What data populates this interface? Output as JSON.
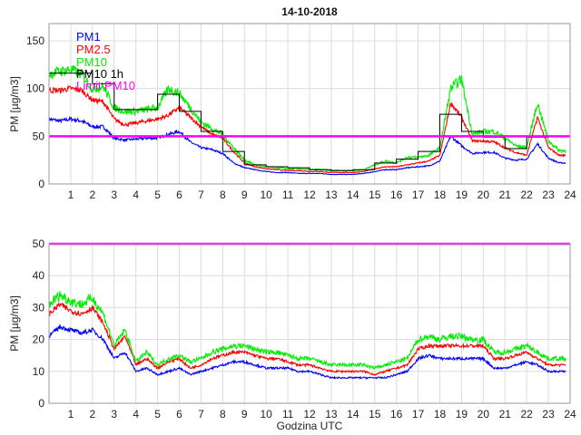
{
  "chart_data": [
    {
      "type": "line",
      "title": "14-10-2018",
      "xlabel": "",
      "ylabel": "PM [µg/m3]",
      "xlim": [
        0,
        24
      ],
      "ylim": [
        0,
        168
      ],
      "xticks": [
        1,
        2,
        3,
        4,
        5,
        6,
        7,
        8,
        9,
        10,
        11,
        12,
        13,
        14,
        15,
        16,
        17,
        18,
        19,
        20,
        21,
        22,
        23,
        24
      ],
      "yticks": [
        0,
        50,
        100,
        150
      ],
      "grid": true,
      "legend_position": "top-left",
      "x": [
        0,
        0.5,
        1,
        1.5,
        2,
        2.5,
        3,
        3.5,
        4,
        4.5,
        5,
        5.5,
        6,
        6.5,
        7,
        7.5,
        8,
        8.5,
        9,
        9.5,
        10,
        10.5,
        11,
        11.5,
        12,
        12.5,
        13,
        13.5,
        14,
        14.5,
        15,
        15.5,
        16,
        16.5,
        17,
        17.5,
        18,
        18.5,
        19,
        19.5,
        20,
        20.5,
        21,
        21.5,
        22,
        22.5,
        23,
        23.5,
        23.8
      ],
      "series": [
        {
          "name": "PM1",
          "color": "#0000ff",
          "values": [
            68,
            66,
            68,
            66,
            60,
            60,
            48,
            46,
            47,
            48,
            48,
            52,
            55,
            44,
            38,
            36,
            32,
            22,
            17,
            15,
            13,
            12,
            12,
            11,
            11,
            11,
            10,
            10,
            10,
            11,
            13,
            15,
            15,
            17,
            18,
            19,
            24,
            50,
            40,
            32,
            33,
            33,
            27,
            25,
            26,
            42,
            27,
            22,
            22
          ]
        },
        {
          "name": "PM2.5",
          "color": "#ff0000",
          "values": [
            98,
            98,
            100,
            98,
            88,
            86,
            68,
            62,
            64,
            66,
            68,
            72,
            80,
            70,
            60,
            52,
            48,
            34,
            22,
            18,
            16,
            15,
            14,
            14,
            13,
            13,
            12,
            12,
            12,
            13,
            16,
            18,
            18,
            20,
            22,
            24,
            30,
            85,
            70,
            45,
            45,
            44,
            38,
            33,
            30,
            70,
            38,
            30,
            30
          ]
        },
        {
          "name": "PM10",
          "color": "#00ee00",
          "values": [
            115,
            118,
            120,
            115,
            100,
            102,
            80,
            76,
            76,
            78,
            80,
            100,
            95,
            80,
            65,
            58,
            52,
            38,
            25,
            20,
            18,
            17,
            16,
            16,
            15,
            15,
            14,
            14,
            14,
            15,
            20,
            24,
            22,
            28,
            28,
            30,
            38,
            100,
            110,
            52,
            55,
            55,
            48,
            40,
            38,
            85,
            45,
            35,
            35
          ]
        }
      ],
      "pm10_1h": {
        "name": "PM10 1h",
        "color": "#000000",
        "hours": [
          0,
          1,
          2,
          3,
          4,
          5,
          6,
          7,
          8,
          9,
          10,
          11,
          12,
          13,
          14,
          15,
          16,
          17,
          18,
          19,
          20,
          21,
          22
        ],
        "values": [
          116,
          116,
          105,
          78,
          78,
          94,
          76,
          55,
          34,
          20,
          18,
          17,
          15,
          14,
          15,
          22,
          26,
          34,
          73,
          55,
          49,
          37,
          49
        ]
      },
      "limit": {
        "name": "Limit PM10",
        "color": "#ff00ff",
        "value": 50
      }
    },
    {
      "type": "line",
      "title": "",
      "xlabel": "Godzina UTC",
      "ylabel": "PM [µg/m3]",
      "xlim": [
        0,
        24
      ],
      "ylim": [
        0,
        50
      ],
      "xticks": [
        1,
        2,
        3,
        4,
        5,
        6,
        7,
        8,
        9,
        10,
        11,
        12,
        13,
        14,
        15,
        16,
        17,
        18,
        19,
        20,
        21,
        22,
        23,
        24
      ],
      "yticks": [
        0,
        10,
        20,
        30,
        40,
        50
      ],
      "grid": true,
      "x": [
        0,
        0.5,
        1,
        1.5,
        2,
        2.5,
        3,
        3.5,
        4,
        4.5,
        5,
        5.5,
        6,
        6.5,
        7,
        7.5,
        8,
        8.5,
        9,
        9.5,
        10,
        10.5,
        11,
        11.5,
        12,
        12.5,
        13,
        13.5,
        14,
        14.5,
        15,
        15.5,
        16,
        16.5,
        17,
        17.5,
        18,
        18.5,
        19,
        19.5,
        20,
        20.5,
        21,
        21.5,
        22,
        22.5,
        23,
        23.5,
        23.8
      ],
      "series": [
        {
          "name": "PM1",
          "color": "#0000ff",
          "values": [
            21,
            24,
            23,
            22,
            23,
            20,
            14,
            16,
            10,
            11,
            9,
            10,
            11,
            9,
            10,
            11,
            12,
            13,
            13,
            12,
            11,
            11,
            11,
            10,
            10,
            9,
            8,
            8,
            8,
            8,
            8,
            8,
            9,
            10,
            14,
            15,
            14,
            14,
            14,
            14,
            14,
            11,
            11,
            12,
            13,
            12,
            10,
            10,
            10
          ]
        },
        {
          "name": "PM2.5",
          "color": "#ff0000",
          "values": [
            28,
            31,
            29,
            28,
            30,
            25,
            17,
            21,
            12,
            14,
            11,
            13,
            14,
            11,
            12,
            14,
            15,
            16,
            16,
            15,
            14,
            14,
            13,
            12,
            12,
            11,
            10,
            10,
            10,
            10,
            9,
            10,
            11,
            12,
            17,
            18,
            18,
            18,
            18,
            18,
            18,
            14,
            14,
            15,
            16,
            14,
            12,
            12,
            12
          ]
        },
        {
          "name": "PM10",
          "color": "#00ee00",
          "values": [
            31,
            34,
            32,
            31,
            33,
            28,
            18,
            23,
            13,
            16,
            12,
            14,
            15,
            13,
            14,
            16,
            17,
            18,
            18,
            17,
            16,
            16,
            15,
            14,
            14,
            13,
            12,
            12,
            12,
            12,
            11,
            12,
            13,
            14,
            20,
            21,
            20,
            21,
            21,
            20,
            20,
            16,
            16,
            17,
            18,
            16,
            14,
            14,
            14
          ]
        }
      ],
      "limit": {
        "name": "Limit PM10",
        "color": "#ff00ff",
        "value": 50
      }
    }
  ]
}
